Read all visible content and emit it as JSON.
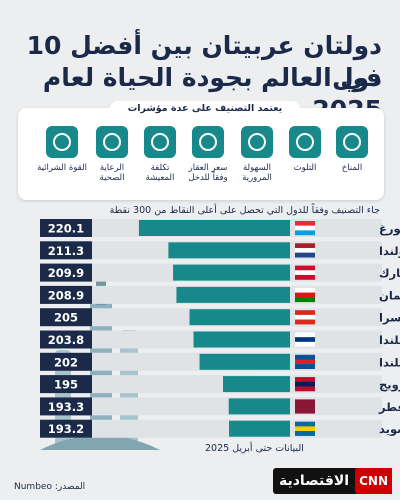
{
  "title_lines": [
    "دولتان عربيتان بين أفضل 10 دول",
    "في العالم بجودة الحياة لعام 2025"
  ],
  "indicators_title": "يعتمد التصنيف على عدة مؤشرات",
  "indicators": [
    "المناخ",
    "التلوث",
    "السهولة المرورية",
    "سعر العقار وفقاً للدخل",
    "تكلفة المعيشة",
    "الرعاية الصحية",
    "القوة الشرائية"
  ],
  "chart_data": {
    "type": "bar",
    "note": "جاء التصنيف وفقاً للدول التي تحصل على أعلى النقاط من 300 نقطة",
    "categories": [
      "لوكسمبورغ",
      "هولندا",
      "الدنمارك",
      "سلطنة عُمان",
      "سويسرا",
      "فنلندا",
      "أيسلندا",
      "النرويج",
      "قطر",
      "السويد"
    ],
    "values": [
      220.1,
      211.3,
      209.9,
      208.9,
      205,
      203.8,
      202,
      195,
      193.3,
      193.2
    ],
    "color": "#17898a",
    "xlim": [
      175,
      225
    ],
    "date_note": "البيانات حتى أبريل 2025"
  },
  "source": "المصدر: Numbeo",
  "logo": {
    "cnn": "CNN",
    "brand": "الاقتصادية"
  }
}
